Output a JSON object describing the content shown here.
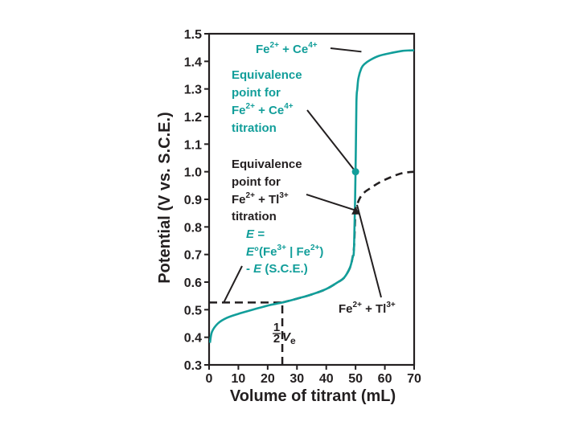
{
  "colors": {
    "ce_curve": "#129e9a",
    "tl_curve": "#231f20",
    "axis": "#231f20",
    "annotation_teal": "#129e9a"
  },
  "chart_data": {
    "type": "line",
    "xlabel": "Volume of titrant (mL)",
    "ylabel": "Potential (V vs. S.C.E.)",
    "xlim": [
      0,
      70
    ],
    "ylim": [
      0.3,
      1.5
    ],
    "x_ticks": [
      "0",
      "10",
      "20",
      "30",
      "40",
      "50",
      "60",
      "70"
    ],
    "y_ticks": [
      "0.3",
      "0.4",
      "0.5",
      "0.6",
      "0.7",
      "0.8",
      "0.9",
      "1.0",
      "1.1",
      "1.2",
      "1.3",
      "1.4",
      "1.5"
    ],
    "grid": false,
    "series": [
      {
        "name": "Fe2+ + Ce4+",
        "line_style": "solid",
        "color": "#129e9a",
        "x": [
          0.3,
          1,
          3,
          6,
          10,
          15,
          20,
          25,
          30,
          35,
          40,
          44,
          46,
          48,
          49,
          49.5,
          50,
          50.3,
          50.6,
          51,
          52,
          53,
          55,
          58,
          62,
          66,
          70
        ],
        "y": [
          0.38,
          0.42,
          0.45,
          0.47,
          0.485,
          0.5,
          0.515,
          0.526,
          0.54,
          0.555,
          0.575,
          0.6,
          0.615,
          0.65,
          0.69,
          0.73,
          1.0,
          1.25,
          1.3,
          1.34,
          1.375,
          1.39,
          1.405,
          1.42,
          1.43,
          1.438,
          1.44
        ]
      },
      {
        "name": "Fe2+ + Tl3+",
        "line_style": "dashed",
        "color": "#231f20",
        "x": [
          25,
          30,
          35,
          40,
          44,
          46,
          48,
          49,
          49.5,
          50,
          50.5,
          51.5,
          53,
          55,
          58,
          62,
          66,
          70
        ],
        "y": [
          0.526,
          0.54,
          0.555,
          0.575,
          0.6,
          0.615,
          0.65,
          0.69,
          0.73,
          0.86,
          0.88,
          0.905,
          0.925,
          0.94,
          0.96,
          0.98,
          0.995,
          1.0
        ]
      }
    ],
    "reference_lines": [
      {
        "type": "horizontal",
        "y": 0.526,
        "x_from": 0,
        "x_to": 25,
        "style": "dashed"
      },
      {
        "type": "vertical",
        "x": 25,
        "y_from": 0.3,
        "y_to": 0.526,
        "style": "dashed"
      }
    ],
    "markers": [
      {
        "x": 50,
        "y": 1.0,
        "shape": "circle",
        "color": "#129e9a"
      },
      {
        "x": 50,
        "y": 0.86,
        "shape": "triangle",
        "color": "#231f20"
      }
    ],
    "annotations": {
      "fe_ce": {
        "parts": [
          "Fe",
          "2+",
          " + Ce",
          "4+"
        ],
        "target": [
          52,
          1.435
        ]
      },
      "eq_ce": {
        "lines": [
          "Equivalence",
          "point for"
        ],
        "formula": [
          "Fe",
          "2+",
          " + Ce",
          "4+"
        ],
        "last": "titration",
        "target": [
          50,
          1.0
        ]
      },
      "eq_tl": {
        "lines": [
          "Equivalence",
          "point for"
        ],
        "formula": [
          "Fe",
          "2+",
          " + Tl",
          "3+"
        ],
        "last": "titration",
        "target": [
          50,
          0.86
        ]
      },
      "eo": {
        "line1": "E =",
        "line2_e": "E",
        "line2_rest": "°(Fe",
        "line2_sup1": "3+",
        "line2_mid": " | Fe",
        "line2_sup2": "2+",
        "line2_end": ")",
        "line3_dash": "- ",
        "line3_e": "E",
        "line3_rest": " (S.C.E.)",
        "target": [
          5,
          0.526
        ]
      },
      "fe_tl": {
        "parts": [
          "Fe",
          "2+",
          " + Tl",
          "3+"
        ],
        "target": [
          50.5,
          0.88
        ]
      },
      "half_ve": {
        "num": "1",
        "den": "2",
        "v": "V",
        "sub": "e"
      }
    }
  }
}
